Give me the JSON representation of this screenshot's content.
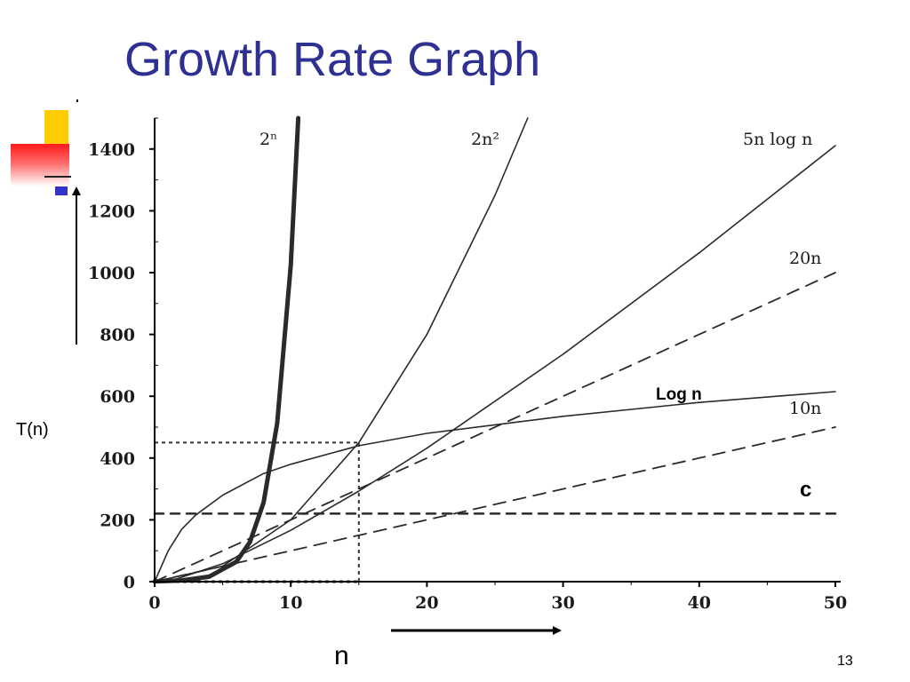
{
  "slide": {
    "title": "Growth Rate Graph",
    "y_axis_label": "T(n)",
    "x_axis_label": "n",
    "page_number": "13"
  },
  "colors": {
    "title": "#2e3192",
    "deco_yellow": "#ffcc00",
    "deco_red": "#ff1a1a",
    "deco_blue": "#3333cc",
    "curves": "#2a2a2a",
    "axes": "#000000"
  },
  "chart_data": {
    "type": "line",
    "title": "",
    "xlabel": "n",
    "ylabel": "T(n)",
    "xlim": [
      0,
      50
    ],
    "ylim": [
      0,
      1500
    ],
    "x_ticks": [
      0,
      10,
      20,
      30,
      40,
      50
    ],
    "y_ticks": [
      0,
      200,
      400,
      600,
      800,
      1000,
      1200,
      1400
    ],
    "grid": false,
    "series": [
      {
        "name": "2ⁿ",
        "formula": "2^n",
        "style": "bold-solid",
        "x": [
          0,
          2,
          4,
          6,
          7,
          8,
          9,
          10,
          10.55
        ],
        "y": [
          1,
          4,
          16,
          64,
          128,
          256,
          512,
          1024,
          1500
        ]
      },
      {
        "name": "2n²",
        "formula": "2n^2",
        "style": "solid",
        "x": [
          0,
          5,
          10,
          15,
          20,
          25,
          27.4
        ],
        "y": [
          0,
          50,
          200,
          450,
          800,
          1250,
          1500
        ]
      },
      {
        "name": "5n log n",
        "formula": "5n*log2(n)",
        "style": "solid",
        "x": [
          1,
          5,
          10,
          15,
          20,
          30,
          40,
          50
        ],
        "y": [
          0,
          58,
          166,
          293,
          432,
          736,
          1064,
          1411
        ]
      },
      {
        "name": "20n",
        "formula": "20n",
        "style": "dashed",
        "x": [
          0,
          10,
          20,
          30,
          40,
          50
        ],
        "y": [
          0,
          200,
          400,
          600,
          800,
          1000
        ]
      },
      {
        "name": "Log n",
        "formula": "log n",
        "style": "solid",
        "x": [
          0,
          0.5,
          1,
          2,
          3,
          5,
          8,
          10,
          15,
          20,
          30,
          40,
          50
        ],
        "y": [
          0,
          50,
          100,
          170,
          215,
          280,
          350,
          380,
          440,
          480,
          535,
          580,
          615
        ]
      },
      {
        "name": "10n",
        "formula": "10n",
        "style": "dashed",
        "x": [
          0,
          10,
          20,
          30,
          40,
          50
        ],
        "y": [
          0,
          100,
          200,
          300,
          400,
          500
        ]
      },
      {
        "name": "c",
        "formula": "c",
        "style": "heavy-dashed",
        "x": [
          0,
          50
        ],
        "y": [
          220,
          220
        ]
      }
    ],
    "reference_lines": [
      {
        "orientation": "horizontal",
        "y": 450,
        "x_range": [
          0,
          15
        ],
        "style": "dotted"
      },
      {
        "orientation": "vertical",
        "x": 15,
        "y_range": [
          0,
          450
        ],
        "style": "dotted"
      }
    ]
  }
}
